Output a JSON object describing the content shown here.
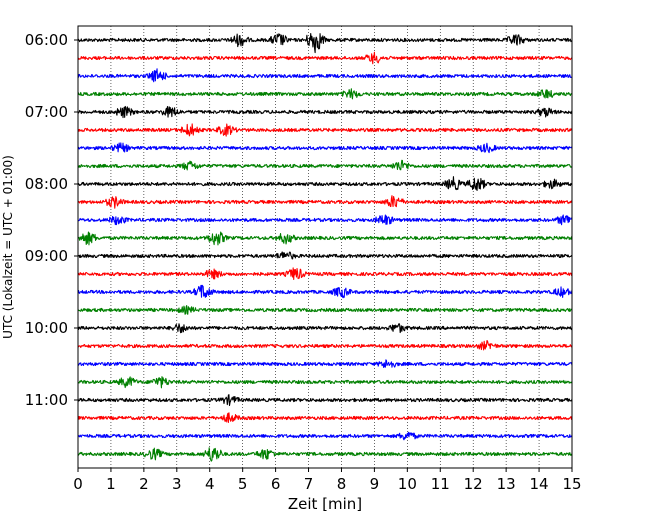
{
  "chart_data": {
    "type": "line",
    "title": "",
    "xlabel": "Zeit  [min]",
    "ylabel": "UTC (Lokalzeit = UTC + 01:00)",
    "xlim": [
      0,
      15
    ],
    "x_ticks": [
      "0",
      "1",
      "2",
      "3",
      "4",
      "5",
      "6",
      "7",
      "8",
      "9",
      "10",
      "11",
      "12",
      "13",
      "14",
      "15"
    ],
    "y_tick_labels": [
      {
        "label": "06:00",
        "trace_index": 0
      },
      {
        "label": "07:00",
        "trace_index": 4
      },
      {
        "label": "08:00",
        "trace_index": 8
      },
      {
        "label": "09:00",
        "trace_index": 12
      },
      {
        "label": "10:00",
        "trace_index": 16
      },
      {
        "label": "11:00",
        "trace_index": 20
      }
    ],
    "x_grid": "dotted vertical lines at each minute",
    "legend": "none",
    "color_cycle": [
      "#000000",
      "#ff0000",
      "#0000ff",
      "#008000"
    ],
    "series": [
      {
        "start": "06:00",
        "color": "#000000",
        "events": [
          [
            4.9,
            6
          ],
          [
            6.1,
            6
          ],
          [
            7.2,
            12
          ],
          [
            13.3,
            5
          ]
        ]
      },
      {
        "start": "06:15",
        "color": "#ff0000",
        "events": [
          [
            9.0,
            5
          ]
        ]
      },
      {
        "start": "06:30",
        "color": "#0000ff",
        "events": [
          [
            2.4,
            6
          ]
        ]
      },
      {
        "start": "06:45",
        "color": "#008000",
        "events": [
          [
            8.3,
            4
          ],
          [
            14.2,
            4
          ]
        ]
      },
      {
        "start": "07:00",
        "color": "#000000",
        "events": [
          [
            1.4,
            5
          ],
          [
            2.8,
            5
          ],
          [
            14.2,
            4
          ]
        ]
      },
      {
        "start": "07:15",
        "color": "#ff0000",
        "events": [
          [
            3.4,
            6
          ],
          [
            4.5,
            5
          ]
        ]
      },
      {
        "start": "07:30",
        "color": "#0000ff",
        "events": [
          [
            1.3,
            4
          ],
          [
            12.4,
            4
          ]
        ]
      },
      {
        "start": "07:45",
        "color": "#008000",
        "events": [
          [
            3.4,
            4
          ],
          [
            9.8,
            5
          ]
        ]
      },
      {
        "start": "08:00",
        "color": "#000000",
        "events": [
          [
            11.4,
            6
          ],
          [
            12.1,
            7
          ],
          [
            14.4,
            4
          ]
        ]
      },
      {
        "start": "08:15",
        "color": "#ff0000",
        "events": [
          [
            1.1,
            5
          ],
          [
            9.6,
            6
          ]
        ]
      },
      {
        "start": "08:30",
        "color": "#0000ff",
        "events": [
          [
            1.2,
            4
          ],
          [
            9.3,
            5
          ],
          [
            14.8,
            5
          ]
        ]
      },
      {
        "start": "08:45",
        "color": "#008000",
        "events": [
          [
            0.3,
            6
          ],
          [
            4.2,
            7
          ],
          [
            6.3,
            5
          ]
        ]
      },
      {
        "start": "09:00",
        "color": "#000000",
        "events": [
          [
            6.3,
            4
          ]
        ]
      },
      {
        "start": "09:15",
        "color": "#ff0000",
        "events": [
          [
            6.6,
            6
          ],
          [
            4.1,
            4
          ]
        ]
      },
      {
        "start": "09:30",
        "color": "#0000ff",
        "events": [
          [
            3.8,
            7
          ],
          [
            8.0,
            5
          ],
          [
            14.7,
            4
          ]
        ]
      },
      {
        "start": "09:45",
        "color": "#008000",
        "events": [
          [
            3.3,
            3
          ]
        ]
      },
      {
        "start": "10:00",
        "color": "#000000",
        "events": [
          [
            3.1,
            4
          ],
          [
            9.7,
            4
          ]
        ]
      },
      {
        "start": "10:15",
        "color": "#ff0000",
        "events": [
          [
            12.4,
            4
          ]
        ]
      },
      {
        "start": "10:30",
        "color": "#0000ff",
        "events": [
          [
            9.4,
            4
          ]
        ]
      },
      {
        "start": "10:45",
        "color": "#008000",
        "events": [
          [
            1.5,
            5
          ],
          [
            2.5,
            5
          ]
        ]
      },
      {
        "start": "11:00",
        "color": "#000000",
        "events": [
          [
            4.6,
            4
          ]
        ]
      },
      {
        "start": "11:15",
        "color": "#ff0000",
        "events": [
          [
            4.6,
            4
          ]
        ]
      },
      {
        "start": "11:30",
        "color": "#0000ff",
        "events": [
          [
            10.0,
            4
          ]
        ]
      },
      {
        "start": "11:45",
        "color": "#008000",
        "events": [
          [
            2.3,
            5
          ],
          [
            4.1,
            8
          ],
          [
            5.7,
            5
          ]
        ]
      }
    ]
  }
}
